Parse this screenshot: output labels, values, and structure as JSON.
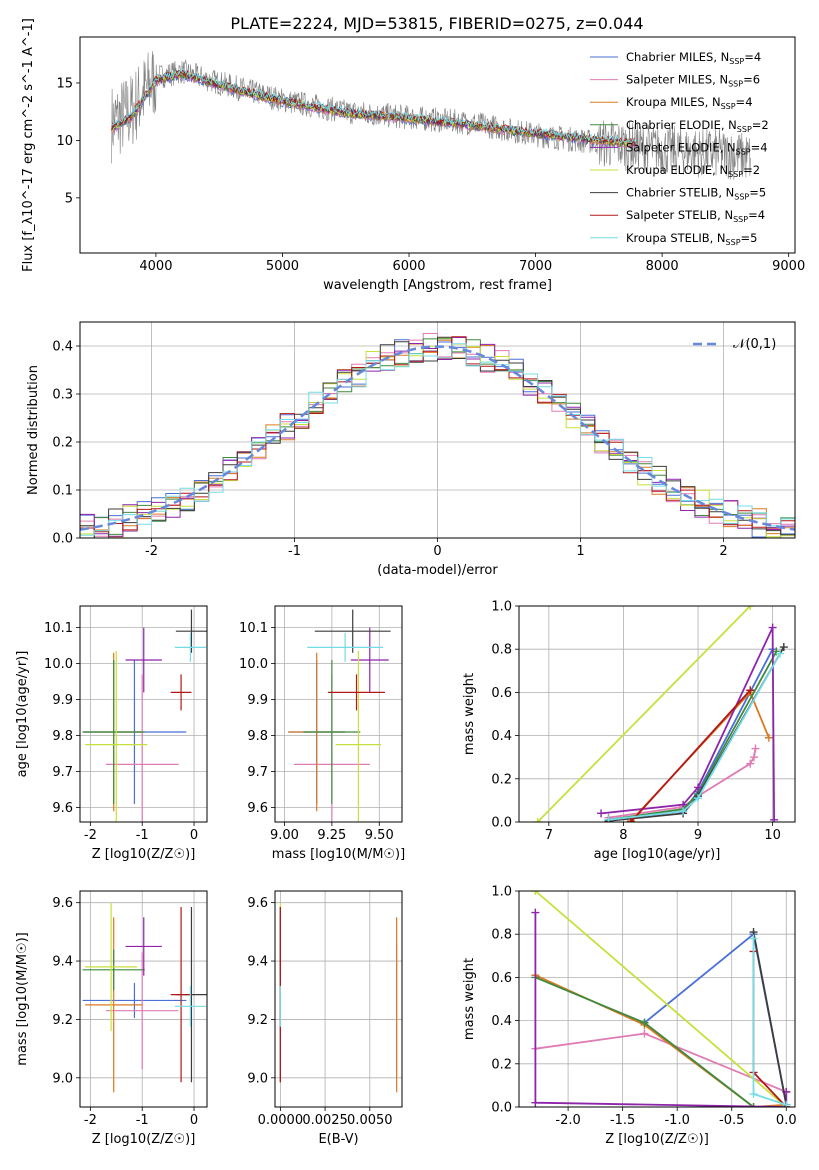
{
  "figure": {
    "title": "PLATE=2224, MJD=53815, FIBERID=0275, z=0.044"
  },
  "models": [
    {
      "name": "Chabrier MILES",
      "nssp": "4",
      "color": "#4a6fd6"
    },
    {
      "name": "Salpeter MILES",
      "nssp": "6",
      "color": "#e07bb4"
    },
    {
      "name": "Kroupa MILES",
      "nssp": "4",
      "color": "#d97a22"
    },
    {
      "name": "Chabrier ELODIE",
      "nssp": "2",
      "color": "#3f8a3f"
    },
    {
      "name": "Salpeter ELODIE",
      "nssp": "4",
      "color": "#8e24aa"
    },
    {
      "name": "Kroupa ELODIE",
      "nssp": "2",
      "color": "#c8e03c"
    },
    {
      "name": "Chabrier STELIB",
      "nssp": "5",
      "color": "#3c3c3c"
    },
    {
      "name": "Salpeter STELIB",
      "nssp": "4",
      "color": "#b21818"
    },
    {
      "name": "Kroupa STELIB",
      "nssp": "5",
      "color": "#74dce6"
    }
  ],
  "chart_data": [
    {
      "id": "spectrum",
      "type": "line",
      "xlabel": "wavelength [Angstrom, rest frame]",
      "ylabel": "Flux [f_λ10^-17 erg cm^-2 s^-1 A^-1]",
      "xlim": [
        3400,
        9050
      ],
      "ylim": [
        0.2,
        19
      ],
      "xticks": [
        4000,
        5000,
        6000,
        7000,
        8000,
        9000
      ],
      "yticks": [
        5,
        10,
        15
      ],
      "legend": "top-right",
      "data_points": [
        [
          3650,
          11.5
        ],
        [
          3800,
          12.5
        ],
        [
          4000,
          15.5
        ],
        [
          4200,
          16.0
        ],
        [
          4500,
          15.0
        ],
        [
          5000,
          13.5
        ],
        [
          5500,
          12.5
        ],
        [
          6000,
          12.0
        ],
        [
          6500,
          11.5
        ],
        [
          7000,
          10.5
        ],
        [
          7500,
          9.8
        ],
        [
          8000,
          9.2
        ],
        [
          8500,
          8.8
        ],
        [
          8700,
          8.5
        ]
      ],
      "model_points": [
        [
          3650,
          11.0
        ],
        [
          3800,
          12.0
        ],
        [
          4000,
          15.2
        ],
        [
          4200,
          15.8
        ],
        [
          4500,
          14.8
        ],
        [
          5000,
          13.4
        ],
        [
          5500,
          12.4
        ],
        [
          6000,
          11.9
        ],
        [
          6500,
          11.3
        ],
        [
          7000,
          10.6
        ],
        [
          7500,
          10.0
        ],
        [
          7800,
          9.7
        ]
      ]
    },
    {
      "id": "residuals",
      "type": "line",
      "xlabel": "(data-model)/error",
      "ylabel": "Normed distribution",
      "xlim": [
        -2.5,
        2.5
      ],
      "ylim": [
        0,
        0.45
      ],
      "xticks": [
        -2,
        -1,
        0,
        1,
        2
      ],
      "yticks": [
        0.0,
        0.1,
        0.2,
        0.3,
        0.4
      ],
      "legend": "top-right",
      "legend_label": "𝒩(0,1)",
      "reference": {
        "name": "𝒩(0,1)",
        "mean": 0,
        "sigma": 1
      }
    },
    {
      "id": "age_vs_Z",
      "type": "scatter",
      "xlabel": "Z [log10(Z/Z☉)]",
      "ylabel": "age [log10(age/yr)]",
      "xlim": [
        -2.2,
        0.25
      ],
      "ylim": [
        9.56,
        10.16
      ],
      "xticks": [
        -2,
        -1,
        0
      ],
      "yticks": [
        9.6,
        9.7,
        9.8,
        9.9,
        10.0,
        10.1
      ],
      "points": [
        {
          "model": 0,
          "x": -1.15,
          "xerr": 1.0,
          "y": 9.81,
          "yerr": 0.2
        },
        {
          "model": 1,
          "x": -1.0,
          "xerr": 0.7,
          "y": 9.72,
          "yerr": 0.25
        },
        {
          "model": 2,
          "x": -1.55,
          "xerr": 0.55,
          "y": 9.81,
          "yerr": 0.22
        },
        {
          "model": 3,
          "x": -1.55,
          "xerr": 0.6,
          "y": 9.81,
          "yerr": 0.2
        },
        {
          "model": 4,
          "x": -0.97,
          "xerr": 0.35,
          "y": 10.01,
          "yerr": 0.09
        },
        {
          "model": 5,
          "x": -1.5,
          "xerr": 0.6,
          "y": 9.775,
          "yerr": 0.26
        },
        {
          "model": 6,
          "x": -0.05,
          "xerr": 0.3,
          "y": 10.09,
          "yerr": 0.06
        },
        {
          "model": 7,
          "x": -0.25,
          "xerr": 0.2,
          "y": 9.92,
          "yerr": 0.05
        },
        {
          "model": 8,
          "x": -0.07,
          "xerr": 0.3,
          "y": 10.045,
          "yerr": 0.04
        }
      ]
    },
    {
      "id": "age_vs_mass",
      "type": "scatter",
      "xlabel": "mass [log10(M/M☉)]",
      "ylabel": "",
      "xlim": [
        8.95,
        9.62
      ],
      "ylim": [
        9.56,
        10.16
      ],
      "xticks": [
        9.0,
        9.25,
        9.5
      ],
      "yticks": [
        9.6,
        9.7,
        9.8,
        9.9,
        10.0,
        10.1
      ],
      "points": [
        {
          "model": 0,
          "x": 9.17,
          "xerr": 0.15,
          "y": 9.81,
          "yerr": 0.2
        },
        {
          "model": 1,
          "x": 9.25,
          "xerr": 0.2,
          "y": 9.72,
          "yerr": 0.25
        },
        {
          "model": 2,
          "x": 9.17,
          "xerr": 0.15,
          "y": 9.81,
          "yerr": 0.22
        },
        {
          "model": 3,
          "x": 9.25,
          "xerr": 0.15,
          "y": 9.81,
          "yerr": 0.2
        },
        {
          "model": 4,
          "x": 9.45,
          "xerr": 0.1,
          "y": 10.01,
          "yerr": 0.09
        },
        {
          "model": 5,
          "x": 9.39,
          "xerr": 0.12,
          "y": 9.775,
          "yerr": 0.26
        },
        {
          "model": 6,
          "x": 9.36,
          "xerr": 0.2,
          "y": 10.09,
          "yerr": 0.06
        },
        {
          "model": 7,
          "x": 9.38,
          "xerr": 0.15,
          "y": 9.92,
          "yerr": 0.05
        },
        {
          "model": 8,
          "x": 9.32,
          "xerr": 0.2,
          "y": 10.045,
          "yerr": 0.04
        }
      ]
    },
    {
      "id": "weight_vs_age",
      "type": "line",
      "xlabel": "age [log10(age/yr)]",
      "ylabel": "mass weight",
      "xlim": [
        6.6,
        10.3
      ],
      "ylim": [
        0,
        1
      ],
      "xticks": [
        7,
        8,
        9,
        10
      ],
      "yticks": [
        0.0,
        0.2,
        0.4,
        0.6,
        0.8,
        1.0
      ],
      "series": [
        {
          "model": 0,
          "points": [
            [
              7.8,
              0.01
            ],
            [
              8.8,
              0.05
            ],
            [
              9.0,
              0.14
            ],
            [
              10.0,
              0.8
            ]
          ]
        },
        {
          "model": 1,
          "points": [
            [
              7.8,
              0.02
            ],
            [
              8.8,
              0.07
            ],
            [
              9.0,
              0.12
            ],
            [
              9.7,
              0.27
            ],
            [
              9.75,
              0.3
            ],
            [
              9.77,
              0.34
            ]
          ]
        },
        {
          "model": 2,
          "points": [
            [
              8.1,
              0.005
            ],
            [
              9.7,
              0.6
            ],
            [
              9.95,
              0.39
            ]
          ]
        },
        {
          "model": 3,
          "points": [
            [
              7.8,
              0.01
            ],
            [
              8.8,
              0.06
            ],
            [
              9.0,
              0.13
            ],
            [
              10.05,
              0.79
            ]
          ]
        },
        {
          "model": 4,
          "points": [
            [
              7.7,
              0.04
            ],
            [
              8.8,
              0.08
            ],
            [
              9.0,
              0.16
            ],
            [
              10.0,
              0.9
            ],
            [
              10.02,
              0.01
            ]
          ]
        },
        {
          "model": 5,
          "points": [
            [
              6.85,
              0.0
            ],
            [
              9.7,
              1.0
            ]
          ]
        },
        {
          "model": 6,
          "points": [
            [
              7.8,
              0.005
            ],
            [
              8.8,
              0.04
            ],
            [
              9.0,
              0.12
            ],
            [
              10.15,
              0.81
            ]
          ]
        },
        {
          "model": 7,
          "points": [
            [
              8.1,
              0.0
            ],
            [
              9.7,
              0.61
            ]
          ]
        },
        {
          "model": 8,
          "points": [
            [
              7.8,
              0.01
            ],
            [
              8.8,
              0.05
            ],
            [
              9.0,
              0.11
            ],
            [
              10.1,
              0.78
            ]
          ]
        }
      ]
    },
    {
      "id": "mass_vs_Z",
      "type": "scatter",
      "xlabel": "Z [log10(Z/Z☉)]",
      "ylabel": "mass [log10(M/M☉)]",
      "xlim": [
        -2.2,
        0.25
      ],
      "ylim": [
        8.9,
        9.64
      ],
      "xticks": [
        -2,
        -1,
        0
      ],
      "yticks": [
        9.0,
        9.2,
        9.4,
        9.6
      ],
      "points": [
        {
          "model": 0,
          "x": -1.15,
          "xerr": 1.0,
          "y": 9.265,
          "yerr": 0.06
        },
        {
          "model": 1,
          "x": -1.0,
          "xerr": 0.7,
          "y": 9.23,
          "yerr": 0.2
        },
        {
          "model": 2,
          "x": -1.55,
          "xerr": 0.55,
          "y": 9.25,
          "yerr": 0.3
        },
        {
          "model": 3,
          "x": -1.55,
          "xerr": 0.6,
          "y": 9.37,
          "yerr": 0.07
        },
        {
          "model": 4,
          "x": -0.97,
          "xerr": 0.35,
          "y": 9.45,
          "yerr": 0.1
        },
        {
          "model": 5,
          "x": -1.6,
          "xerr": 0.5,
          "y": 9.38,
          "yerr": 0.22
        },
        {
          "model": 6,
          "x": -0.05,
          "xerr": 0.3,
          "y": 9.285,
          "yerr": 0.3
        },
        {
          "model": 7,
          "x": -0.25,
          "xerr": 0.2,
          "y": 9.285,
          "yerr": 0.3
        },
        {
          "model": 8,
          "x": -0.07,
          "xerr": 0.3,
          "y": 9.245,
          "yerr": 0.07
        }
      ]
    },
    {
      "id": "mass_vs_EBV",
      "type": "scatter",
      "xlabel": "E(B-V)",
      "ylabel": "",
      "xlim": [
        -0.0003,
        0.0068
      ],
      "ylim": [
        8.9,
        9.64
      ],
      "xticks": [
        0.0,
        0.0025,
        0.005
      ],
      "xticklabels": [
        "0.0000",
        "0.0025",
        "0.0050"
      ],
      "yticks": [
        9.0,
        9.2,
        9.4,
        9.6
      ],
      "points": [
        {
          "model": 0,
          "x": 0.0,
          "y": 9.265,
          "yerr": 0.06
        },
        {
          "model": 1,
          "x": 0.0065,
          "y": 9.23,
          "yerr": 0.23
        },
        {
          "model": 2,
          "x": 0.0065,
          "y": 9.25,
          "yerr": 0.3
        },
        {
          "model": 3,
          "x": 0.0,
          "y": 9.37,
          "yerr": 0.07
        },
        {
          "model": 4,
          "x": 0.0,
          "y": 9.45,
          "yerr": 0.1
        },
        {
          "model": 5,
          "x": 0.0,
          "y": 9.38,
          "yerr": 0.22
        },
        {
          "model": 6,
          "x": 0.0,
          "y": 9.285,
          "yerr": 0.3
        },
        {
          "model": 7,
          "x": 0.0,
          "y": 9.285,
          "yerr": 0.3
        },
        {
          "model": 8,
          "x": 0.0,
          "y": 9.245,
          "yerr": 0.07
        }
      ]
    },
    {
      "id": "weight_vs_Z",
      "type": "line",
      "xlabel": "Z [log10(Z/Z☉)]",
      "ylabel": "mass weight",
      "xlim": [
        -2.45,
        0.08
      ],
      "ylim": [
        0,
        1
      ],
      "xticks": [
        -2.0,
        -1.5,
        -1.0,
        -0.5,
        0.0
      ],
      "yticks": [
        0.0,
        0.2,
        0.4,
        0.6,
        0.8,
        1.0
      ],
      "series": [
        {
          "model": 0,
          "points": [
            [
              -1.3,
              0.39
            ],
            [
              -0.3,
              0.8
            ],
            [
              0.0,
              0.01
            ]
          ]
        },
        {
          "model": 1,
          "points": [
            [
              -2.3,
              0.27
            ],
            [
              -1.3,
              0.34
            ],
            [
              0.0,
              0.07
            ]
          ]
        },
        {
          "model": 2,
          "points": [
            [
              -2.3,
              0.61
            ],
            [
              -1.3,
              0.38
            ],
            [
              -0.3,
              0.0
            ],
            [
              0.0,
              0.01
            ]
          ]
        },
        {
          "model": 3,
          "points": [
            [
              -2.3,
              0.6
            ],
            [
              -1.3,
              0.39
            ],
            [
              -0.3,
              0.0
            ]
          ]
        },
        {
          "model": 4,
          "points": [
            [
              -2.3,
              0.9
            ],
            [
              -2.3,
              0.02
            ],
            [
              0.0,
              0.0
            ],
            [
              0.0,
              0.07
            ]
          ]
        },
        {
          "model": 5,
          "points": [
            [
              -2.3,
              1.0
            ],
            [
              0.0,
              0.0
            ]
          ]
        },
        {
          "model": 6,
          "points": [
            [
              -0.3,
              0.81
            ],
            [
              0.0,
              0.01
            ]
          ]
        },
        {
          "model": 7,
          "points": [
            [
              -0.3,
              0.72
            ],
            [
              -0.3,
              0.16
            ],
            [
              0.0,
              0.0
            ]
          ]
        },
        {
          "model": 8,
          "points": [
            [
              -0.3,
              0.78
            ],
            [
              -0.3,
              0.06
            ],
            [
              0.0,
              0.01
            ]
          ]
        }
      ]
    }
  ]
}
